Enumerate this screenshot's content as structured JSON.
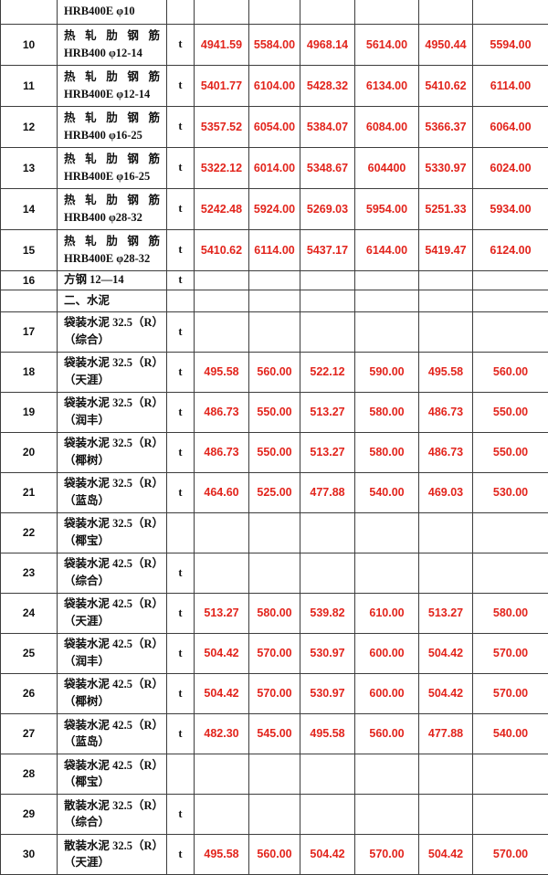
{
  "document": {
    "title": "materials-price-table",
    "section2_title": "二、水泥",
    "colors": {
      "price_text": "#e2241c",
      "border": "#3d3d3d",
      "body_text": "#111111",
      "background": "#ffffff"
    }
  },
  "table": {
    "price_column_count": 6,
    "rows": [
      {
        "kind": "partial",
        "no": "",
        "name_line1": "",
        "name_line2": "HRB400E φ10",
        "unit": "",
        "prices": [
          "",
          "",
          "",
          "",
          "",
          ""
        ]
      },
      {
        "kind": "steel",
        "no": "10",
        "name_line1": "热 轧 肋 钢 筋",
        "name_line2": "HRB400 φ12-14",
        "unit": "t",
        "prices": [
          "4941.59",
          "5584.00",
          "4968.14",
          "5614.00",
          "4950.44",
          "5594.00"
        ]
      },
      {
        "kind": "steel",
        "no": "11",
        "name_line1": "热 轧 肋 钢 筋",
        "name_line2": "HRB400E φ12-14",
        "unit": "t",
        "prices": [
          "5401.77",
          "6104.00",
          "5428.32",
          "6134.00",
          "5410.62",
          "6114.00"
        ]
      },
      {
        "kind": "steel",
        "no": "12",
        "name_line1": "热 轧 肋 钢 筋",
        "name_line2": "HRB400 φ16-25",
        "unit": "t",
        "prices": [
          "5357.52",
          "6054.00",
          "5384.07",
          "6084.00",
          "5366.37",
          "6064.00"
        ]
      },
      {
        "kind": "steel",
        "no": "13",
        "name_line1": "热 轧 肋 钢 筋",
        "name_line2": "HRB400E φ16-25",
        "unit": "t",
        "prices": [
          "5322.12",
          "6014.00",
          "5348.67",
          "604400",
          "5330.97",
          "6024.00"
        ]
      },
      {
        "kind": "steel",
        "no": "14",
        "name_line1": "热 轧 肋 钢 筋",
        "name_line2": "HRB400 φ28-32",
        "unit": "t",
        "prices": [
          "5242.48",
          "5924.00",
          "5269.03",
          "5954.00",
          "5251.33",
          "5934.00"
        ]
      },
      {
        "kind": "steel",
        "no": "15",
        "name_line1": "热 轧 肋 钢 筋",
        "name_line2": "HRB400E φ28-32",
        "unit": "t",
        "prices": [
          "5410.62",
          "6114.00",
          "5437.17",
          "6144.00",
          "5419.47",
          "6124.00"
        ]
      },
      {
        "kind": "simple",
        "no": "16",
        "name_line1": "方钢 12—14",
        "name_line2": "",
        "unit": "t",
        "prices": [
          "",
          "",
          "",
          "",
          "",
          ""
        ]
      },
      {
        "kind": "section",
        "no": "",
        "name_line1": "二、水泥",
        "name_line2": "",
        "unit": "",
        "prices": [
          "",
          "",
          "",
          "",
          "",
          ""
        ]
      },
      {
        "kind": "cement",
        "no": "17",
        "name_line1": "袋装水泥 32.5（R）",
        "name_line2": "（综合）",
        "unit": "t",
        "prices": [
          "",
          "",
          "",
          "",
          "",
          ""
        ]
      },
      {
        "kind": "cement",
        "no": "18",
        "name_line1": "袋装水泥 32.5（R）",
        "name_line2": "（天涯）",
        "unit": "t",
        "prices": [
          "495.58",
          "560.00",
          "522.12",
          "590.00",
          "495.58",
          "560.00"
        ]
      },
      {
        "kind": "cement",
        "no": "19",
        "name_line1": "袋装水泥 32.5（R）",
        "name_line2": "（润丰）",
        "unit": "t",
        "prices": [
          "486.73",
          "550.00",
          "513.27",
          "580.00",
          "486.73",
          "550.00"
        ]
      },
      {
        "kind": "cement",
        "no": "20",
        "name_line1": "袋装水泥 32.5（R）",
        "name_line2": "（椰树）",
        "unit": "t",
        "prices": [
          "486.73",
          "550.00",
          "513.27",
          "580.00",
          "486.73",
          "550.00"
        ]
      },
      {
        "kind": "cement",
        "no": "21",
        "name_line1": "袋装水泥 32.5（R）",
        "name_line2": "（蓝岛）",
        "unit": "t",
        "prices": [
          "464.60",
          "525.00",
          "477.88",
          "540.00",
          "469.03",
          "530.00"
        ]
      },
      {
        "kind": "cement",
        "no": "22",
        "name_line1": "袋装水泥 32.5（R）",
        "name_line2": "（椰宝）",
        "unit": "",
        "prices": [
          "",
          "",
          "",
          "",
          "",
          ""
        ]
      },
      {
        "kind": "cement",
        "no": "23",
        "name_line1": "袋装水泥 42.5（R）",
        "name_line2": "（综合）",
        "unit": "t",
        "prices": [
          "",
          "",
          "",
          "",
          "",
          ""
        ]
      },
      {
        "kind": "cement",
        "no": "24",
        "name_line1": "袋装水泥 42.5（R）",
        "name_line2": "（天涯）",
        "unit": "t",
        "prices": [
          "513.27",
          "580.00",
          "539.82",
          "610.00",
          "513.27",
          "580.00"
        ]
      },
      {
        "kind": "cement",
        "no": "25",
        "name_line1": "袋装水泥 42.5（R）",
        "name_line2": "（润丰）",
        "unit": "t",
        "prices": [
          "504.42",
          "570.00",
          "530.97",
          "600.00",
          "504.42",
          "570.00"
        ]
      },
      {
        "kind": "cement",
        "no": "26",
        "name_line1": "袋装水泥 42.5（R）",
        "name_line2": "（椰树）",
        "unit": "t",
        "prices": [
          "504.42",
          "570.00",
          "530.97",
          "600.00",
          "504.42",
          "570.00"
        ]
      },
      {
        "kind": "cement",
        "no": "27",
        "name_line1": "袋装水泥 42.5（R）",
        "name_line2": "（蓝岛）",
        "unit": "t",
        "prices": [
          "482.30",
          "545.00",
          "495.58",
          "560.00",
          "477.88",
          "540.00"
        ]
      },
      {
        "kind": "cement",
        "no": "28",
        "name_line1": "袋装水泥 42.5（R）",
        "name_line2": "（椰宝）",
        "unit": "",
        "prices": [
          "",
          "",
          "",
          "",
          "",
          ""
        ]
      },
      {
        "kind": "cement",
        "no": "29",
        "name_line1": "散装水泥 32.5（R）",
        "name_line2": "（综合）",
        "unit": "t",
        "prices": [
          "",
          "",
          "",
          "",
          "",
          ""
        ]
      },
      {
        "kind": "cement",
        "no": "30",
        "name_line1": "散装水泥 32.5（R）",
        "name_line2": "（天涯）",
        "unit": "t",
        "prices": [
          "495.58",
          "560.00",
          "504.42",
          "570.00",
          "504.42",
          "570.00"
        ]
      }
    ]
  }
}
